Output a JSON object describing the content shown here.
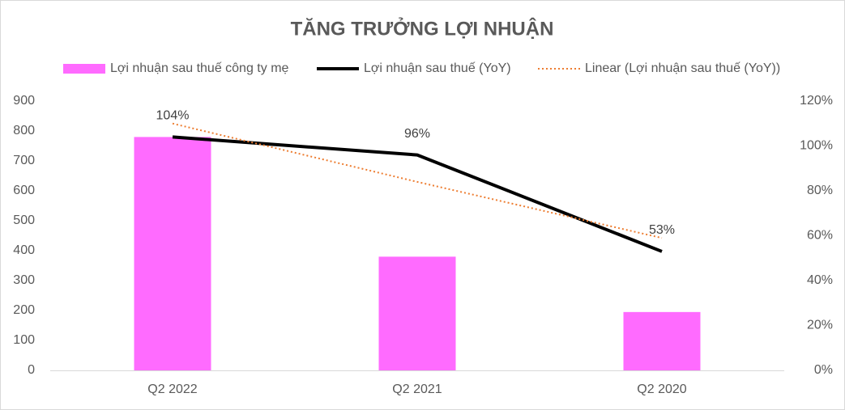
{
  "chart_data": {
    "type": "combo",
    "title": "TĂNG TRƯỞNG LỢI NHUẬN",
    "categories": [
      "Q2 2022",
      "Q2 2021",
      "Q2 2020"
    ],
    "series": [
      {
        "name": "Lợi nhuận sau thuế công ty mẹ",
        "type": "bar",
        "color": "#ff6bff",
        "values": [
          780,
          380,
          195
        ]
      },
      {
        "name": "Lợi nhuận sau thuế (YoY)",
        "type": "line",
        "axis": "y2",
        "color": "#000000",
        "style": "solid",
        "values": [
          104,
          96,
          53
        ],
        "value_labels": [
          "104%",
          "96%",
          "53%"
        ]
      },
      {
        "name": "Linear (Lợi nhuận sau thuế (YoY))",
        "type": "line",
        "axis": "y2",
        "color": "#ed7d31",
        "style": "dotted",
        "values": [
          110,
          84,
          59
        ]
      }
    ],
    "ylim": [
      0,
      900
    ],
    "yticks": [
      0,
      100,
      200,
      300,
      400,
      500,
      600,
      700,
      800,
      900
    ],
    "y2lim": [
      0,
      120
    ],
    "y2ticks": [
      {
        "value": 0,
        "label": "0%"
      },
      {
        "value": 20,
        "label": "20%"
      },
      {
        "value": 40,
        "label": "40%"
      },
      {
        "value": 60,
        "label": "60%"
      },
      {
        "value": 80,
        "label": "80%"
      },
      {
        "value": 100,
        "label": "100%"
      },
      {
        "value": 120,
        "label": "120%"
      }
    ],
    "grid": false,
    "legend": "top"
  }
}
